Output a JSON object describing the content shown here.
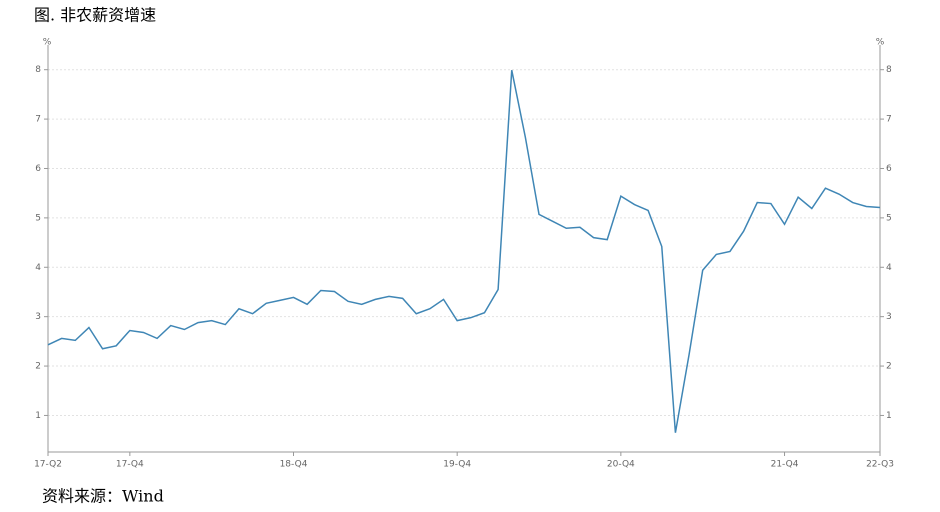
{
  "chart_data": {
    "type": "line",
    "title": "图. 非农薪资增速",
    "source": "资料来源：Wind",
    "y_unit": "%",
    "y2_unit": "%",
    "categories": [
      "17-Q2",
      null,
      null,
      null,
      null,
      null,
      "17-Q4",
      null,
      null,
      null,
      null,
      null,
      null,
      null,
      null,
      null,
      null,
      null,
      "18-Q4",
      null,
      null,
      null,
      null,
      null,
      null,
      null,
      null,
      null,
      null,
      null,
      "19-Q4",
      null,
      null,
      null,
      null,
      null,
      null,
      null,
      null,
      null,
      null,
      null,
      "20-Q4",
      null,
      null,
      null,
      null,
      null,
      null,
      null,
      null,
      null,
      null,
      null,
      "21-Q4",
      null,
      null,
      null,
      null,
      null,
      null,
      "22-Q3"
    ],
    "series": [
      {
        "name": "非农薪资增速",
        "color": "#3f86b5",
        "values": [
          2.43,
          2.56,
          2.52,
          2.78,
          2.35,
          2.41,
          2.72,
          2.68,
          2.56,
          2.82,
          2.74,
          2.88,
          2.92,
          2.84,
          3.16,
          3.06,
          3.27,
          3.33,
          3.39,
          3.25,
          3.53,
          3.51,
          3.31,
          3.25,
          3.35,
          3.41,
          3.37,
          3.06,
          3.16,
          3.35,
          2.92,
          2.98,
          3.08,
          3.55,
          7.99,
          6.63,
          5.07,
          4.93,
          4.79,
          4.81,
          4.6,
          4.56,
          5.44,
          5.27,
          5.15,
          4.42,
          0.65,
          2.23,
          3.94,
          4.26,
          4.32,
          4.73,
          5.31,
          5.29,
          4.87,
          5.42,
          5.19,
          5.6,
          5.48,
          5.31,
          5.23,
          5.21
        ]
      }
    ],
    "ylim": [
      0.26,
      8.5
    ],
    "yticks": [
      1,
      2,
      3,
      4,
      5,
      6,
      7,
      8
    ],
    "y2lim": [
      0.26,
      8.5
    ],
    "y2ticks": [
      1,
      2,
      3,
      4,
      5,
      6,
      7,
      8
    ],
    "grid": true
  }
}
